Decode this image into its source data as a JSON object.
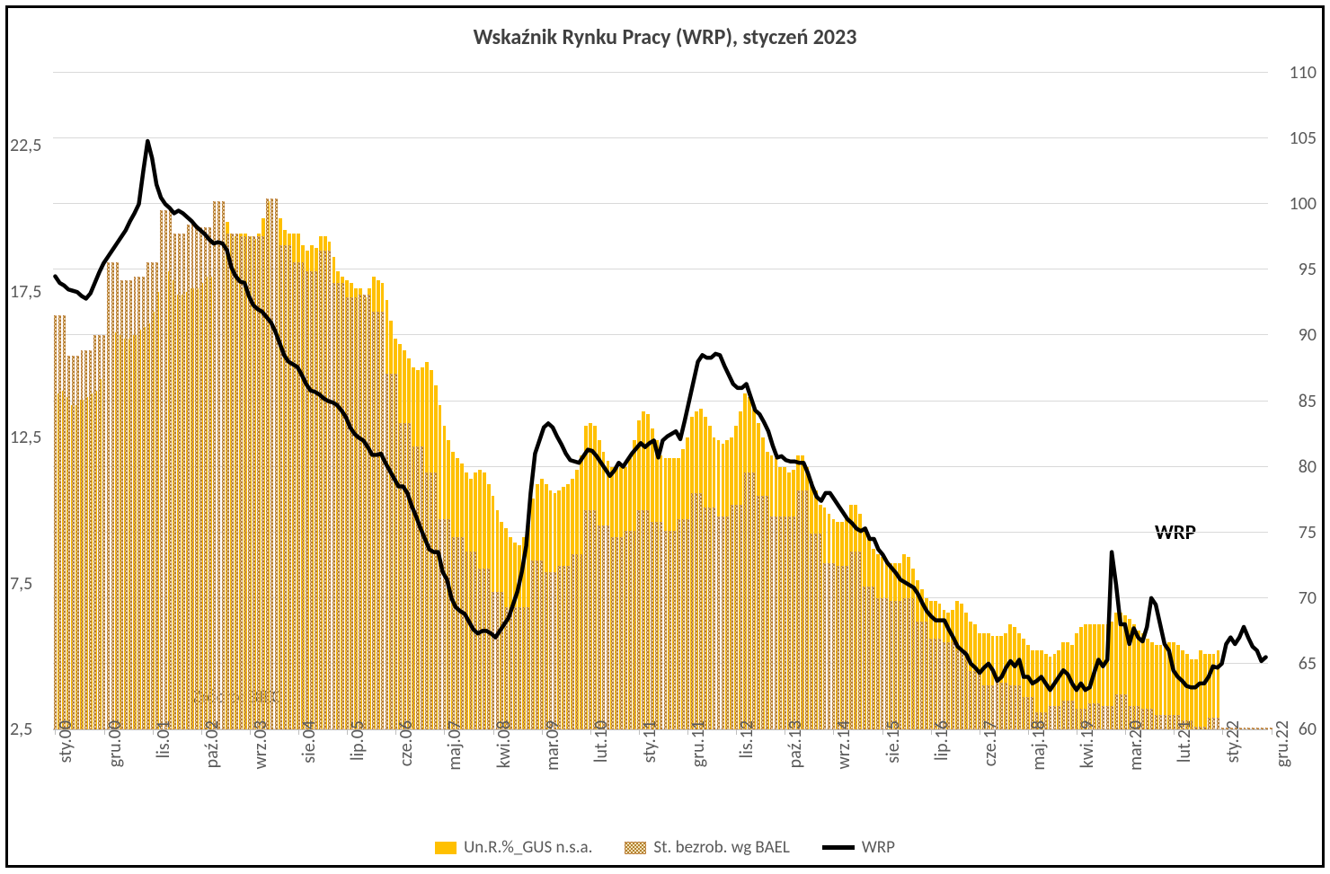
{
  "chart": {
    "type": "bar+line",
    "title": "Wskaźnik Rynku Pracy (WRP), styczeń 2023",
    "title_fontsize": 24,
    "title_color": "#404040",
    "background_color": "#ffffff",
    "frame_border_color": "#000000",
    "grid_color": "#d9d9d9",
    "axis_label_color": "#595959",
    "axis_fontsize": 20,
    "bar_color_gus": "#ffc000",
    "bar_pattern_bael_fg": "#b38330",
    "bar_pattern_bael_bg": "#f2e0b8",
    "line_color_wrp": "#000000",
    "line_width_wrp": 4.5,
    "left_axis": {
      "min": 2.5,
      "max": 25,
      "ticks": [
        2.5,
        7.5,
        12.5,
        17.5,
        22.5
      ]
    },
    "right_axis": {
      "min": 60,
      "max": 110,
      "ticks": [
        60,
        65,
        70,
        75,
        80,
        85,
        90,
        95,
        100,
        105,
        110
      ]
    },
    "x_labels_shown": [
      "sty.00",
      "gru.00",
      "lis.01",
      "paź.02",
      "wrz.03",
      "sie.04",
      "lip.05",
      "cze.06",
      "maj.07",
      "kwi.08",
      "mar.09",
      "lut.10",
      "sty.11",
      "gru.11",
      "lis.12",
      "paź.13",
      "wrz.14",
      "sie.15",
      "lip.16",
      "cze.17",
      "maj.18",
      "kwi.19",
      "mar.20",
      "lut.21",
      "sty.22",
      "gru.22"
    ],
    "x_label_interval_months": 11,
    "annotation_wrp": {
      "text": "WRP",
      "fontsize": 23
    },
    "source_note": {
      "text": "Żródło: BIEC",
      "fontsize": 20
    },
    "legend": {
      "fontsize": 19,
      "items": [
        {
          "label": "Un.R.%_GUS n.s.a.",
          "type": "swatch",
          "color": "#ffc000"
        },
        {
          "label": "St. bezrob. wg BAEL",
          "type": "pattern"
        },
        {
          "label": "WRP",
          "type": "line",
          "color": "#000000"
        }
      ]
    },
    "n_points": 276,
    "gus": [
      13.7,
      14,
      14.1,
      13.9,
      13.6,
      13.6,
      13.8,
      13.9,
      14,
      14.1,
      14.5,
      15.1,
      15.6,
      15.9,
      16.1,
      16,
      15.9,
      15.9,
      16,
      16.2,
      16.3,
      16.4,
      16.8,
      17.5,
      18,
      18.2,
      18.2,
      17.9,
      17.4,
      17.4,
      17.5,
      17.6,
      17.6,
      17.8,
      18,
      18,
      20,
      20.2,
      20.1,
      19.9,
      19.5,
      19.4,
      19.5,
      19.5,
      19.4,
      19.3,
      19.5,
      20,
      20.6,
      20.6,
      20.4,
      20,
      19.6,
      19.5,
      19.5,
      19.5,
      19.1,
      18.9,
      19.1,
      19,
      19.4,
      19.4,
      19.2,
      18.7,
      18.2,
      18,
      17.9,
      17.8,
      17.6,
      17.6,
      17.3,
      17.6,
      18,
      17.9,
      17.8,
      17.2,
      16.5,
      15.9,
      15.7,
      15.5,
      15.2,
      14.9,
      14.8,
      14.9,
      15.1,
      14.8,
      14.3,
      13.6,
      12.9,
      12.4,
      12,
      11.8,
      11.6,
      11.3,
      11.1,
      11.3,
      11.4,
      11.3,
      10.9,
      10.5,
      10,
      9.6,
      9.4,
      9.1,
      8.9,
      8.8,
      9.1,
      9.5,
      10.4,
      10.9,
      11.1,
      10.9,
      10.7,
      10.6,
      10.7,
      10.8,
      10.9,
      11.1,
      11.4,
      11.9,
      12.9,
      13,
      12.9,
      12.4,
      12,
      11.7,
      11.5,
      11.5,
      11.5,
      11.5,
      11.8,
      12.4,
      13.1,
      13.4,
      13.3,
      12.8,
      12.4,
      11.9,
      11.8,
      11.8,
      11.8,
      11.8,
      12.1,
      12.5,
      13.2,
      13.4,
      13.5,
      13.2,
      12.9,
      12.5,
      12.4,
      12.3,
      12.4,
      12.5,
      12.9,
      13.4,
      14,
      13.9,
      13.5,
      13,
      12.5,
      12,
      11.9,
      11.8,
      11.5,
      11.5,
      11.3,
      11.4,
      11.9,
      11.9,
      11.5,
      11,
      10.7,
      10.2,
      10.1,
      9.9,
      9.7,
      9.6,
      9.6,
      9.7,
      10.2,
      10.2,
      9.9,
      9.4,
      9.1,
      8.7,
      8.5,
      8.4,
      8.2,
      8.2,
      8.2,
      8.2,
      8.5,
      8.4,
      8,
      7.6,
      7.3,
      7,
      6.9,
      6.9,
      6.8,
      6.6,
      6.5,
      6.6,
      6.9,
      6.8,
      6.5,
      6.2,
      6.1,
      5.8,
      5.8,
      5.8,
      5.7,
      5.7,
      5.7,
      5.8,
      6.1,
      6,
      5.8,
      5.6,
      5.4,
      5.2,
      5.2,
      5.2,
      5.1,
      5,
      5.1,
      5.2,
      5.5,
      5.5,
      5.4,
      5.8,
      6,
      6.1,
      6.1,
      6.1,
      6.1,
      6.1,
      6.1,
      6.2,
      6.5,
      6.5,
      6.4,
      6.3,
      6.1,
      5.9,
      5.8,
      5.6,
      5.5,
      5.4,
      5.4,
      5.4,
      5.5,
      5.5,
      5.4,
      5.2,
      5.1,
      4.9,
      4.9,
      5.2,
      5.1,
      5.1,
      5.1,
      5.2
    ],
    "bael": [
      16.7,
      16.7,
      16.7,
      15.3,
      15.3,
      15.3,
      15.5,
      15.5,
      15.5,
      16.0,
      16.0,
      16.0,
      18.5,
      18.5,
      18.5,
      17.9,
      17.9,
      17.9,
      18.0,
      18.0,
      18.0,
      18.5,
      18.5,
      18.5,
      20.3,
      20.3,
      20.3,
      19.5,
      19.5,
      19.5,
      19.8,
      19.8,
      19.8,
      19.7,
      19.7,
      19.7,
      20.6,
      20.6,
      20.6,
      19.5,
      19.5,
      19.5,
      19.4,
      19.4,
      19.4,
      19.4,
      19.4,
      19.4,
      20.7,
      20.7,
      20.7,
      19.1,
      19.1,
      19.1,
      18.5,
      18.5,
      18.5,
      18.2,
      18.2,
      18.2,
      18.9,
      18.9,
      18.9,
      17.8,
      17.8,
      17.8,
      17.3,
      17.3,
      17.3,
      17.4,
      17.4,
      17.4,
      16.8,
      16.8,
      16.8,
      14.7,
      14.7,
      14.7,
      13.0,
      13.0,
      13.0,
      12.2,
      12.2,
      12.2,
      11.3,
      11.3,
      11.3,
      9.7,
      9.7,
      9.7,
      9.1,
      9.1,
      9.1,
      8.6,
      8.6,
      8.6,
      8.0,
      8.0,
      8.0,
      7.2,
      7.2,
      7.2,
      6.7,
      6.7,
      6.7,
      6.7,
      6.7,
      6.7,
      8.3,
      8.3,
      8.3,
      7.9,
      7.9,
      7.9,
      8.1,
      8.1,
      8.1,
      8.5,
      8.5,
      8.5,
      10.0,
      10.0,
      10.0,
      9.5,
      9.5,
      9.5,
      9.1,
      9.1,
      9.1,
      9.3,
      9.3,
      9.3,
      10.0,
      10.0,
      10.0,
      9.6,
      9.6,
      9.6,
      9.3,
      9.3,
      9.3,
      9.7,
      9.7,
      9.7,
      10.6,
      10.6,
      10.6,
      10.1,
      10.1,
      10.1,
      9.8,
      9.8,
      9.8,
      10.2,
      10.2,
      10.2,
      11.3,
      11.3,
      11.3,
      10.5,
      10.5,
      10.5,
      9.8,
      9.8,
      9.8,
      9.8,
      9.8,
      9.8,
      10.7,
      10.7,
      10.7,
      9.2,
      9.2,
      9.2,
      8.2,
      8.2,
      8.2,
      8.1,
      8.1,
      8.1,
      8.6,
      8.6,
      8.6,
      7.4,
      7.4,
      7.4,
      7.0,
      7.0,
      7.0,
      6.9,
      6.9,
      6.9,
      7.0,
      7.0,
      7.0,
      6.2,
      6.2,
      6.2,
      5.6,
      5.6,
      5.6,
      5.5,
      5.5,
      5.5,
      5.2,
      5.2,
      5.2,
      4.5,
      4.5,
      4.5,
      4.0,
      4.0,
      4.0,
      4.1,
      4.1,
      4.1,
      4.0,
      4.0,
      4.0,
      3.6,
      3.6,
      3.6,
      3.1,
      3.1,
      3.1,
      3.3,
      3.3,
      3.3,
      3.5,
      3.5,
      3.5,
      3.2,
      3.2,
      3.2,
      3.4,
      3.4,
      3.4,
      3.3,
      3.3,
      3.3,
      3.7,
      3.7,
      3.7,
      3.3,
      3.3,
      3.3,
      3.2,
      3.2,
      3.2,
      3.0,
      3.0,
      3.0,
      3.0,
      3.0,
      3.0,
      2.8,
      2.8,
      2.8,
      2.6,
      2.6,
      2.6,
      2.9,
      2.9,
      2.9
    ],
    "wrp": [
      94.5,
      94.0,
      93.8,
      93.5,
      93.4,
      93.3,
      93.0,
      92.8,
      93.2,
      94.0,
      94.8,
      95.5,
      96.0,
      96.5,
      97.0,
      97.5,
      98.0,
      98.7,
      99.3,
      100.0,
      102.5,
      104.8,
      103.5,
      101.5,
      100.5,
      100.0,
      99.7,
      99.3,
      99.5,
      99.3,
      99.0,
      98.7,
      98.3,
      98.0,
      97.7,
      97.3,
      97.0,
      97.1,
      97.0,
      96.5,
      95.2,
      94.5,
      94.1,
      94.0,
      93.0,
      92.3,
      92.0,
      91.8,
      91.4,
      91.0,
      90.3,
      89.4,
      88.5,
      88.0,
      87.8,
      87.6,
      87.0,
      86.3,
      85.8,
      85.7,
      85.5,
      85.2,
      85.0,
      84.9,
      84.7,
      84.3,
      83.8,
      83.0,
      82.5,
      82.2,
      82.0,
      81.5,
      80.9,
      80.9,
      81.0,
      80.3,
      79.7,
      79.1,
      78.5,
      78.5,
      78.0,
      77.0,
      76.2,
      75.3,
      74.5,
      73.7,
      73.5,
      73.5,
      72.0,
      71.4,
      70.0,
      69.3,
      69.0,
      68.8,
      68.2,
      67.6,
      67.3,
      67.5,
      67.5,
      67.3,
      67.0,
      67.5,
      68.0,
      68.5,
      69.5,
      70.5,
      72.0,
      74.0,
      78.0,
      81.0,
      82.0,
      83.0,
      83.3,
      83.0,
      82.3,
      81.7,
      81.0,
      80.5,
      80.4,
      80.3,
      80.8,
      81.3,
      81.2,
      80.8,
      80.3,
      79.8,
      79.3,
      79.7,
      80.3,
      80.0,
      80.5,
      81.0,
      81.4,
      81.8,
      81.5,
      81.8,
      82.0,
      80.7,
      82.0,
      82.3,
      82.5,
      82.7,
      82.1,
      83.5,
      85.0,
      86.5,
      88.0,
      88.5,
      88.3,
      88.3,
      88.6,
      88.5,
      87.7,
      87.0,
      86.3,
      86.0,
      86.0,
      86.3,
      85.3,
      84.3,
      84.0,
      83.4,
      82.7,
      81.6,
      80.7,
      80.8,
      80.5,
      80.4,
      80.4,
      80.3,
      80.3,
      79.5,
      78.5,
      77.7,
      77.4,
      78.0,
      78.0,
      77.5,
      77.0,
      76.5,
      76.0,
      75.7,
      75.3,
      75.1,
      75.3,
      74.5,
      74.5,
      73.7,
      73.3,
      72.7,
      72.3,
      71.9,
      71.4,
      71.2,
      71.0,
      70.8,
      70.3,
      69.6,
      69.0,
      68.6,
      68.3,
      68.3,
      68.3,
      67.6,
      67.0,
      66.3,
      66.0,
      65.7,
      65.0,
      64.7,
      64.3,
      64.7,
      65.0,
      64.5,
      63.7,
      64.0,
      64.7,
      65.2,
      64.8,
      65.3,
      64.0,
      64.0,
      63.5,
      63.7,
      64.0,
      63.5,
      63.0,
      63.5,
      64.0,
      64.5,
      64.2,
      63.5,
      63.0,
      63.5,
      63.0,
      63.2,
      64.3,
      65.3,
      64.8,
      65.3,
      73.5,
      71.0,
      68.0,
      68.0,
      66.5,
      67.7,
      67.0,
      66.7,
      67.8,
      70.0,
      69.5,
      68.0,
      66.5,
      66.0,
      64.5,
      64.0,
      63.7,
      63.3,
      63.2,
      63.2,
      63.5,
      63.5,
      64.0,
      64.8,
      64.7,
      65.0,
      66.5,
      67.0,
      66.5,
      67.0,
      67.8,
      67.0,
      66.3,
      66.0,
      65.2,
      65.5
    ]
  }
}
